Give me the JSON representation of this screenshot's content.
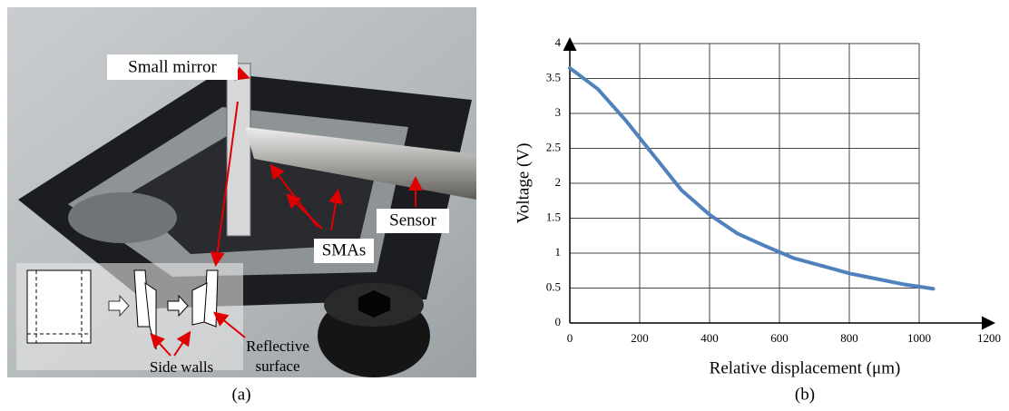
{
  "panel_a": {
    "label": "(a)",
    "small_mirror": "Small mirror",
    "sensor": "Sensor",
    "smas": "SMAs",
    "side_walls": "Side walls",
    "reflective_surface": [
      "Reflective",
      "surface"
    ]
  },
  "panel_b": {
    "label": "(b)"
  },
  "chart_data": {
    "type": "line",
    "x_label": "Relative displacement (μm)",
    "y_label": "Voltage (V)",
    "x": [
      0,
      80,
      160,
      240,
      320,
      400,
      480,
      560,
      640,
      720,
      800,
      880,
      960,
      1040
    ],
    "series": [
      {
        "name": "Voltage",
        "color": "#4f81bd",
        "values": [
          3.65,
          3.35,
          2.9,
          2.4,
          1.9,
          1.55,
          1.28,
          1.1,
          0.93,
          0.82,
          0.71,
          0.63,
          0.55,
          0.49
        ]
      }
    ],
    "xlim": [
      0,
      1200
    ],
    "xticks": [
      0,
      200,
      400,
      600,
      800,
      1000,
      1200
    ],
    "ylim": [
      0,
      4
    ],
    "yticks": [
      0,
      0.5,
      1,
      1.5,
      2,
      2.5,
      3,
      3.5,
      4
    ],
    "grid": true
  }
}
